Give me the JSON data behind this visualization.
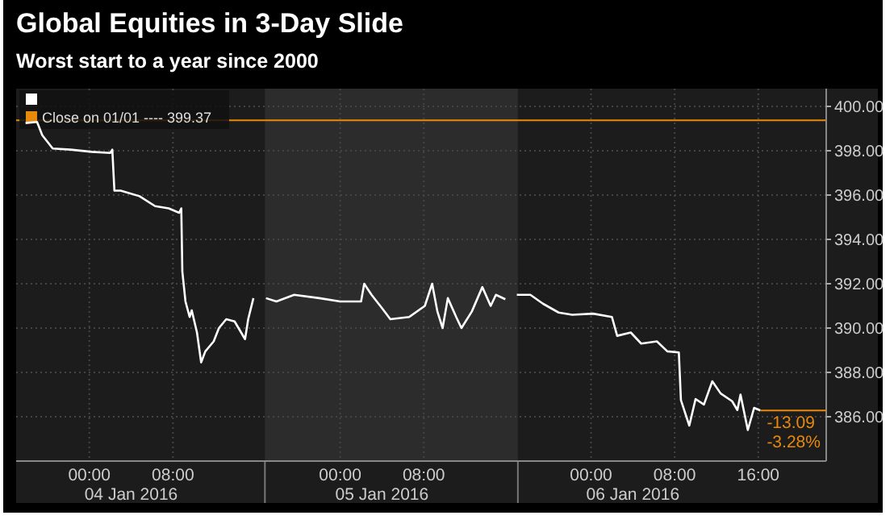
{
  "chart_data": {
    "type": "line",
    "title": "Global Equities in 3-Day Slide",
    "subtitle": "Worst start to a year since 2000",
    "x": [
      "2016-01-03T17:54",
      "2016-01-03T19:00",
      "2016-01-03T19:30",
      "2016-01-03T20:30",
      "2016-01-03T22:12",
      "2016-01-04T00:15",
      "2016-01-04T02:00",
      "2016-01-04T02:12",
      "2016-01-04T02:24",
      "2016-01-04T03:00",
      "2016-01-04T04:48",
      "2016-01-04T06:18",
      "2016-01-04T07:36",
      "2016-01-04T08:36",
      "2016-01-04T08:48",
      "2016-01-04T08:54",
      "2016-01-04T09:12",
      "2016-01-04T09:36",
      "2016-01-04T09:48",
      "2016-01-04T10:18",
      "2016-01-04T10:42",
      "2016-01-04T11:06",
      "2016-01-04T11:54",
      "2016-01-04T12:24",
      "2016-01-04T13:06",
      "2016-01-04T13:54",
      "2016-01-04T14:24",
      "2016-01-04T14:54",
      "2016-01-04T15:12",
      "2016-01-04T15:42",
      "2016-01-04T16:18",
      "2016-01-04T16:54",
      "2016-01-04T17:54",
      "2016-01-04T19:36",
      "2016-01-04T22:00",
      "2016-01-05T00:00",
      "2016-01-05T02:00",
      "2016-01-05T02:18",
      "2016-01-05T03:00",
      "2016-01-05T04:00",
      "2016-01-05T04:48",
      "2016-01-05T06:36",
      "2016-01-05T08:06",
      "2016-01-05T08:48",
      "2016-01-05T09:18",
      "2016-01-05T09:48",
      "2016-01-05T10:18",
      "2016-01-05T11:06",
      "2016-01-05T11:36",
      "2016-01-05T12:36",
      "2016-01-05T13:36",
      "2016-01-05T14:24",
      "2016-01-05T14:54",
      "2016-01-05T15:48",
      "2016-01-05T16:24",
      "2016-01-05T16:54",
      "2016-01-05T18:12",
      "2016-01-05T19:24",
      "2016-01-05T20:54",
      "2016-01-05T22:12",
      "2016-01-06T00:12",
      "2016-01-06T02:00",
      "2016-01-06T02:30",
      "2016-01-06T03:48",
      "2016-01-06T04:48",
      "2016-01-06T06:18",
      "2016-01-06T07:18",
      "2016-01-06T08:24",
      "2016-01-06T08:36",
      "2016-01-06T09:24",
      "2016-01-06T10:00",
      "2016-01-06T10:48",
      "2016-01-06T11:36",
      "2016-01-06T12:24",
      "2016-01-06T13:30",
      "2016-01-06T14:00",
      "2016-01-06T14:18",
      "2016-01-06T15:00",
      "2016-01-06T15:36",
      "2016-01-06T16:12"
    ],
    "series": [
      {
        "color": "#ffffff",
        "values": [
          399.25,
          399.3,
          398.7,
          398.1,
          398.05,
          397.95,
          397.9,
          398.05,
          396.2,
          396.2,
          395.95,
          395.5,
          395.4,
          395.2,
          395.4,
          392.55,
          391.2,
          390.5,
          390.8,
          389.8,
          388.45,
          388.95,
          389.4,
          390.0,
          390.4,
          390.3,
          389.9,
          389.5,
          390.4,
          391.35,
          null,
          391.35,
          391.2,
          391.5,
          391.35,
          391.2,
          391.2,
          392.0,
          391.5,
          390.9,
          390.4,
          390.5,
          391.0,
          392.0,
          390.75,
          390.0,
          391.35,
          390.5,
          390.0,
          390.75,
          391.85,
          391.0,
          391.5,
          391.3,
          null,
          391.5,
          391.5,
          391.1,
          390.7,
          390.6,
          390.65,
          390.5,
          389.65,
          389.8,
          389.3,
          389.4,
          388.95,
          388.9,
          386.75,
          385.6,
          386.8,
          386.55,
          387.6,
          387.05,
          386.7,
          386.3,
          387.0,
          385.4,
          386.4,
          386.28
        ]
      }
    ],
    "xlim": [
      "2016-01-03T17:00",
      "2016-01-06T22:30"
    ],
    "xticks": [
      {
        "value": "2016-01-04T00:00",
        "label": "00:00"
      },
      {
        "value": "2016-01-04T08:00",
        "label": "08:00"
      },
      {
        "value": "2016-01-05T00:00",
        "label": "00:00"
      },
      {
        "value": "2016-01-05T08:00",
        "label": "08:00"
      },
      {
        "value": "2016-01-06T00:00",
        "label": "00:00"
      },
      {
        "value": "2016-01-06T08:00",
        "label": "08:00"
      },
      {
        "value": "2016-01-06T16:00",
        "label": "16:00"
      }
    ],
    "ylim": [
      384,
      400.8
    ],
    "yticks": [
      {
        "value": 386,
        "label": "386.00"
      },
      {
        "value": 388,
        "label": "388.00"
      },
      {
        "value": 390,
        "label": "390.00"
      },
      {
        "value": 392,
        "label": "392.00"
      },
      {
        "value": 394,
        "label": "394.00"
      },
      {
        "value": 396,
        "label": "396.00"
      },
      {
        "value": 398,
        "label": "398.00"
      },
      {
        "value": 400,
        "label": "400.00"
      }
    ],
    "ref_lines": [
      {
        "axis": "y",
        "value": 399.37,
        "label": "Close on 01/01 ---- 399.37",
        "color": "#e8890c"
      }
    ],
    "bands": [
      {
        "axis": "x",
        "from": "2016-01-04T16:48",
        "to": "2016-01-05T17:00",
        "color": "#2c2c2c"
      }
    ],
    "annotations": [
      {
        "text": "-13.09",
        "x": "2016-01-06T16:12",
        "y": 386.28
      },
      {
        "text": "-3.28%",
        "x": "2016-01-06T16:12",
        "y": 386.28
      },
      "04 Jan 2016",
      "05 Jan 2016",
      "06 Jan 2016"
    ],
    "grid": true,
    "legend": "top left",
    "line_style": "solid",
    "marker": "none"
  }
}
